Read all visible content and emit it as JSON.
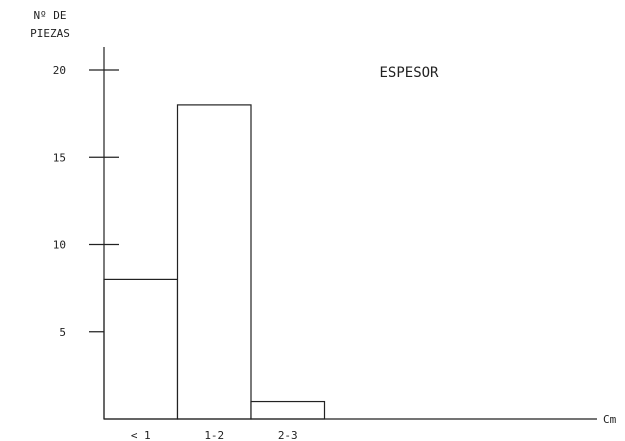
{
  "chart_data": {
    "type": "bar",
    "title": "ESPESOR",
    "ylabel_lines": [
      "Nº DE",
      "PIEZAS"
    ],
    "xlabel": "Cm",
    "categories": [
      "< 1",
      "1-2",
      "2-3"
    ],
    "values": [
      8,
      18,
      1
    ],
    "yticks": [
      5,
      10,
      15,
      20
    ],
    "ylim": [
      0,
      20
    ],
    "grid": false,
    "legend": "none"
  }
}
